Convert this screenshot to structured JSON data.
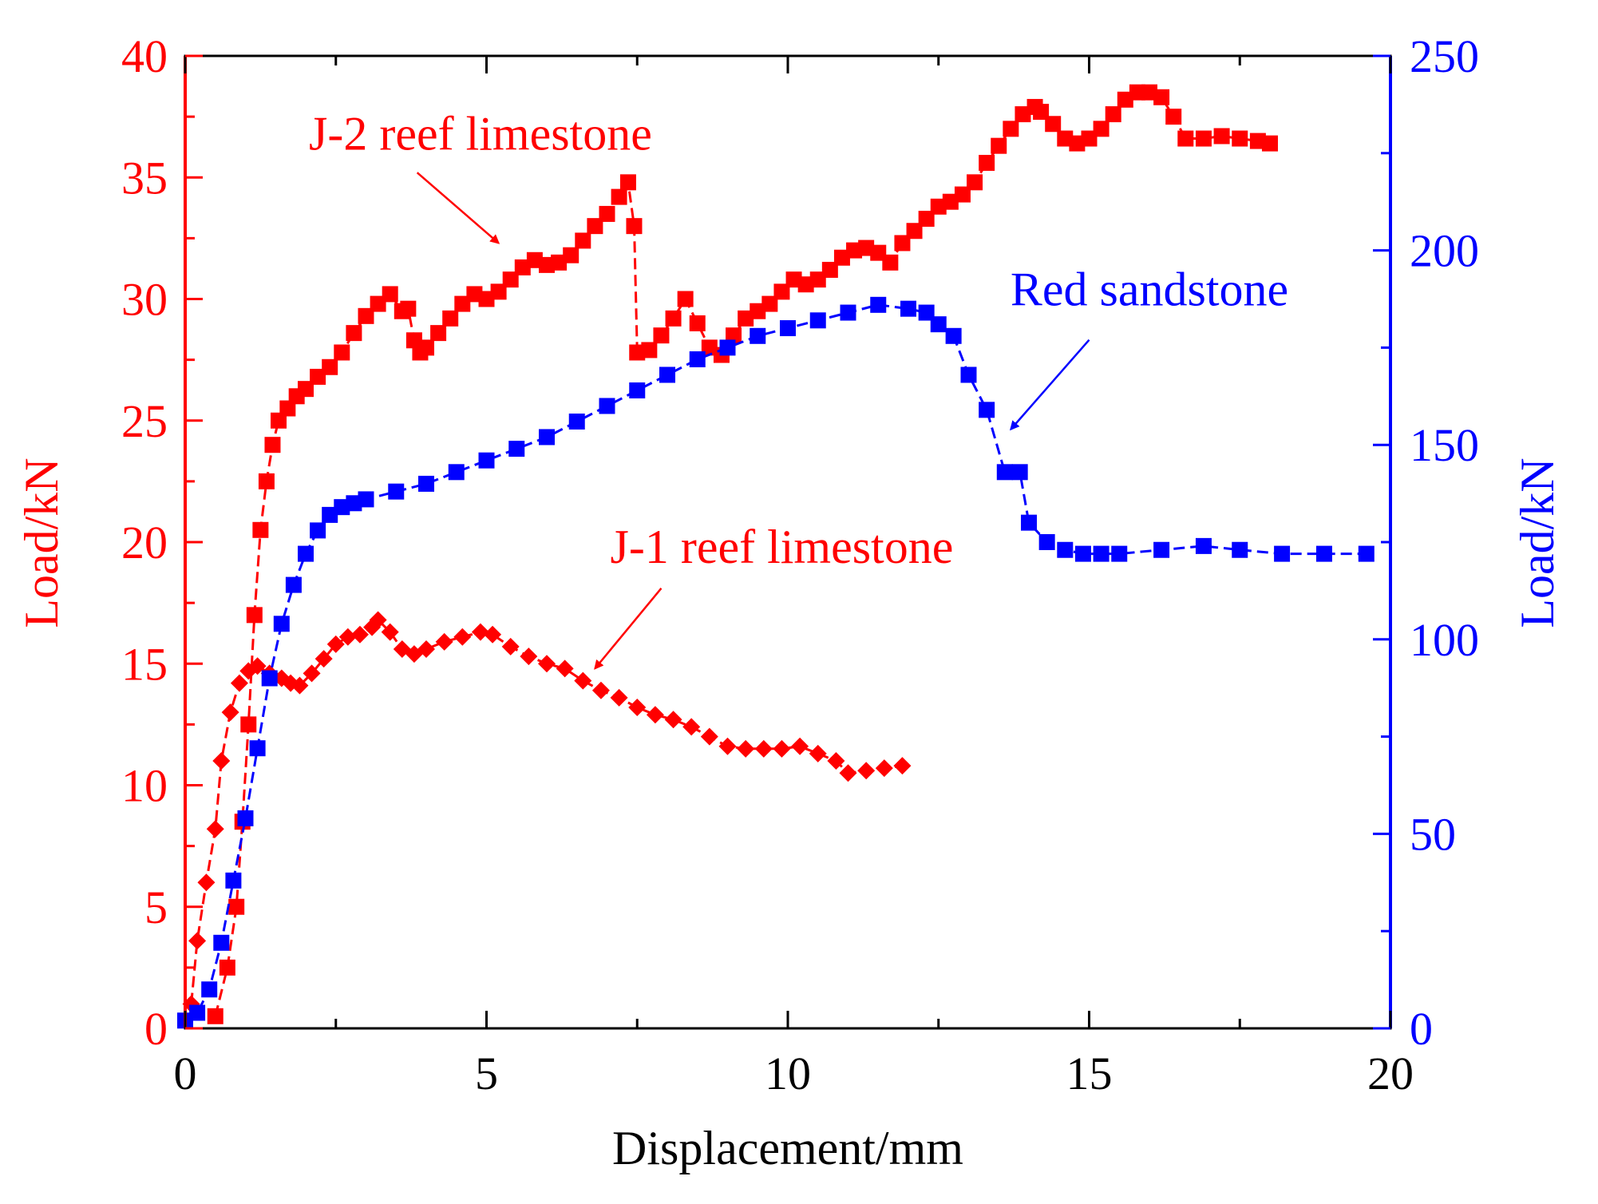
{
  "chart_data": {
    "type": "line",
    "title": "",
    "xlabel": "Displacement/mm",
    "ylabel_left": "Load/kN",
    "ylabel_right": "Load/kN",
    "xlim": [
      0,
      20
    ],
    "ylim_left": [
      0,
      40
    ],
    "ylim_right": [
      0,
      250
    ],
    "x_ticks": [
      0,
      5,
      10,
      15,
      20
    ],
    "y_left_ticks": [
      0,
      5,
      10,
      15,
      20,
      25,
      30,
      35,
      40
    ],
    "y_right_ticks": [
      0,
      50,
      100,
      150,
      200,
      250
    ],
    "grid": false,
    "left_axis_color": "#ff0000",
    "right_axis_color": "#0000ff",
    "series": [
      {
        "name": "J-1 reef limestone",
        "axis": "left",
        "color": "#ff0000",
        "marker": "diamond",
        "x": [
          0.1,
          0.2,
          0.35,
          0.5,
          0.6,
          0.75,
          0.9,
          1.05,
          1.2,
          1.4,
          1.6,
          1.75,
          1.9,
          2.1,
          2.3,
          2.5,
          2.7,
          2.9,
          3.1,
          3.2,
          3.4,
          3.6,
          3.8,
          4.0,
          4.3,
          4.6,
          4.9,
          5.1,
          5.4,
          5.7,
          6.0,
          6.3,
          6.6,
          6.9,
          7.2,
          7.5,
          7.8,
          8.1,
          8.4,
          8.7,
          9.0,
          9.3,
          9.6,
          9.9,
          10.2,
          10.5,
          10.8,
          11.0,
          11.3,
          11.6,
          11.9
        ],
        "y": [
          1.0,
          3.6,
          6.0,
          8.2,
          11.0,
          13.0,
          14.2,
          14.7,
          14.9,
          14.6,
          14.4,
          14.2,
          14.1,
          14.6,
          15.2,
          15.8,
          16.1,
          16.2,
          16.5,
          16.8,
          16.3,
          15.6,
          15.4,
          15.6,
          15.9,
          16.1,
          16.3,
          16.2,
          15.7,
          15.3,
          15.0,
          14.8,
          14.3,
          13.9,
          13.6,
          13.2,
          12.9,
          12.7,
          12.4,
          12.0,
          11.6,
          11.5,
          11.5,
          11.5,
          11.6,
          11.3,
          11.0,
          10.5,
          10.6,
          10.7,
          10.8
        ]
      },
      {
        "name": "J-2 reef limestone",
        "axis": "left",
        "color": "#ff0000",
        "marker": "square",
        "x": [
          0.5,
          0.7,
          0.85,
          0.95,
          1.05,
          1.15,
          1.25,
          1.35,
          1.45,
          1.55,
          1.7,
          1.85,
          2.0,
          2.2,
          2.4,
          2.6,
          2.8,
          3.0,
          3.2,
          3.4,
          3.6,
          3.7,
          3.8,
          3.9,
          4.0,
          4.2,
          4.4,
          4.6,
          4.8,
          5.0,
          5.2,
          5.4,
          5.6,
          5.8,
          6.0,
          6.2,
          6.4,
          6.6,
          6.8,
          7.0,
          7.2,
          7.35,
          7.45,
          7.5,
          7.7,
          7.9,
          8.1,
          8.3,
          8.5,
          8.7,
          8.9,
          9.1,
          9.3,
          9.5,
          9.7,
          9.9,
          10.1,
          10.3,
          10.5,
          10.7,
          10.9,
          11.1,
          11.3,
          11.5,
          11.7,
          11.9,
          12.1,
          12.3,
          12.5,
          12.7,
          12.9,
          13.1,
          13.3,
          13.5,
          13.7,
          13.9,
          14.1,
          14.2,
          14.4,
          14.6,
          14.8,
          15.0,
          15.2,
          15.4,
          15.6,
          15.8,
          16.0,
          16.2,
          16.4,
          16.6,
          16.9,
          17.2,
          17.5,
          17.8,
          18.0
        ],
        "y": [
          0.5,
          2.5,
          5.0,
          8.5,
          12.5,
          17.0,
          20.5,
          22.5,
          24.0,
          25.0,
          25.5,
          26.0,
          26.3,
          26.8,
          27.2,
          27.8,
          28.6,
          29.3,
          29.8,
          30.2,
          29.5,
          29.6,
          28.3,
          27.8,
          28.0,
          28.6,
          29.2,
          29.8,
          30.2,
          30.0,
          30.3,
          30.8,
          31.3,
          31.6,
          31.4,
          31.5,
          31.8,
          32.4,
          33.0,
          33.5,
          34.2,
          34.8,
          33.0,
          27.8,
          27.9,
          28.5,
          29.2,
          30.0,
          29.0,
          28.0,
          27.7,
          28.5,
          29.2,
          29.5,
          29.8,
          30.3,
          30.8,
          30.6,
          30.8,
          31.2,
          31.7,
          32.0,
          32.1,
          31.9,
          31.5,
          32.3,
          32.8,
          33.3,
          33.8,
          34.0,
          34.3,
          34.8,
          35.6,
          36.3,
          37.0,
          37.6,
          37.9,
          37.7,
          37.2,
          36.6,
          36.4,
          36.6,
          37.0,
          37.6,
          38.2,
          38.5,
          38.5,
          38.3,
          37.5,
          36.6,
          36.6,
          36.7,
          36.6,
          36.5,
          36.4
        ]
      },
      {
        "name": "Red sandstone",
        "axis": "right",
        "color": "#0000ff",
        "marker": "square",
        "x": [
          0.0,
          0.2,
          0.4,
          0.6,
          0.8,
          1.0,
          1.2,
          1.4,
          1.6,
          1.8,
          2.0,
          2.2,
          2.4,
          2.6,
          2.8,
          3.0,
          3.5,
          4.0,
          4.5,
          5.0,
          5.5,
          6.0,
          6.5,
          7.0,
          7.5,
          8.0,
          8.5,
          9.0,
          9.5,
          10.0,
          10.5,
          11.0,
          11.5,
          12.0,
          12.3,
          12.5,
          12.75,
          13.0,
          13.3,
          13.6,
          13.85,
          14.0,
          14.3,
          14.6,
          14.9,
          15.2,
          15.5,
          16.2,
          16.9,
          17.5,
          18.2,
          18.9,
          19.6
        ],
        "y": [
          2,
          4,
          10,
          22,
          38,
          54,
          72,
          90,
          104,
          114,
          122,
          128,
          132,
          134,
          135,
          136,
          138,
          140,
          143,
          146,
          149,
          152,
          156,
          160,
          164,
          168,
          172,
          175,
          178,
          180,
          182,
          184,
          186,
          185,
          184,
          181,
          178,
          168,
          159,
          143,
          143,
          130,
          125,
          123,
          122,
          122,
          122,
          123,
          124,
          123,
          122,
          122,
          122
        ]
      }
    ],
    "annotations": [
      {
        "text": "J-2 reef limestone",
        "color": "#ff0000",
        "text_x": 4.9,
        "text_y": 36.8,
        "arrow_from": [
          3.85,
          35.2
        ],
        "arrow_to": [
          5.2,
          32.3
        ]
      },
      {
        "text": "J-1 reef limestone",
        "color": "#ff0000",
        "text_x": 9.9,
        "text_y": 19.8,
        "arrow_from": [
          7.9,
          18.1
        ],
        "arrow_to": [
          6.8,
          14.8
        ]
      },
      {
        "text": "Red sandstone",
        "color": "#0000ff",
        "text_x": 16.0,
        "text_y": 190,
        "arrow_from": [
          15.0,
          177
        ],
        "arrow_to": [
          13.7,
          154
        ]
      }
    ]
  }
}
